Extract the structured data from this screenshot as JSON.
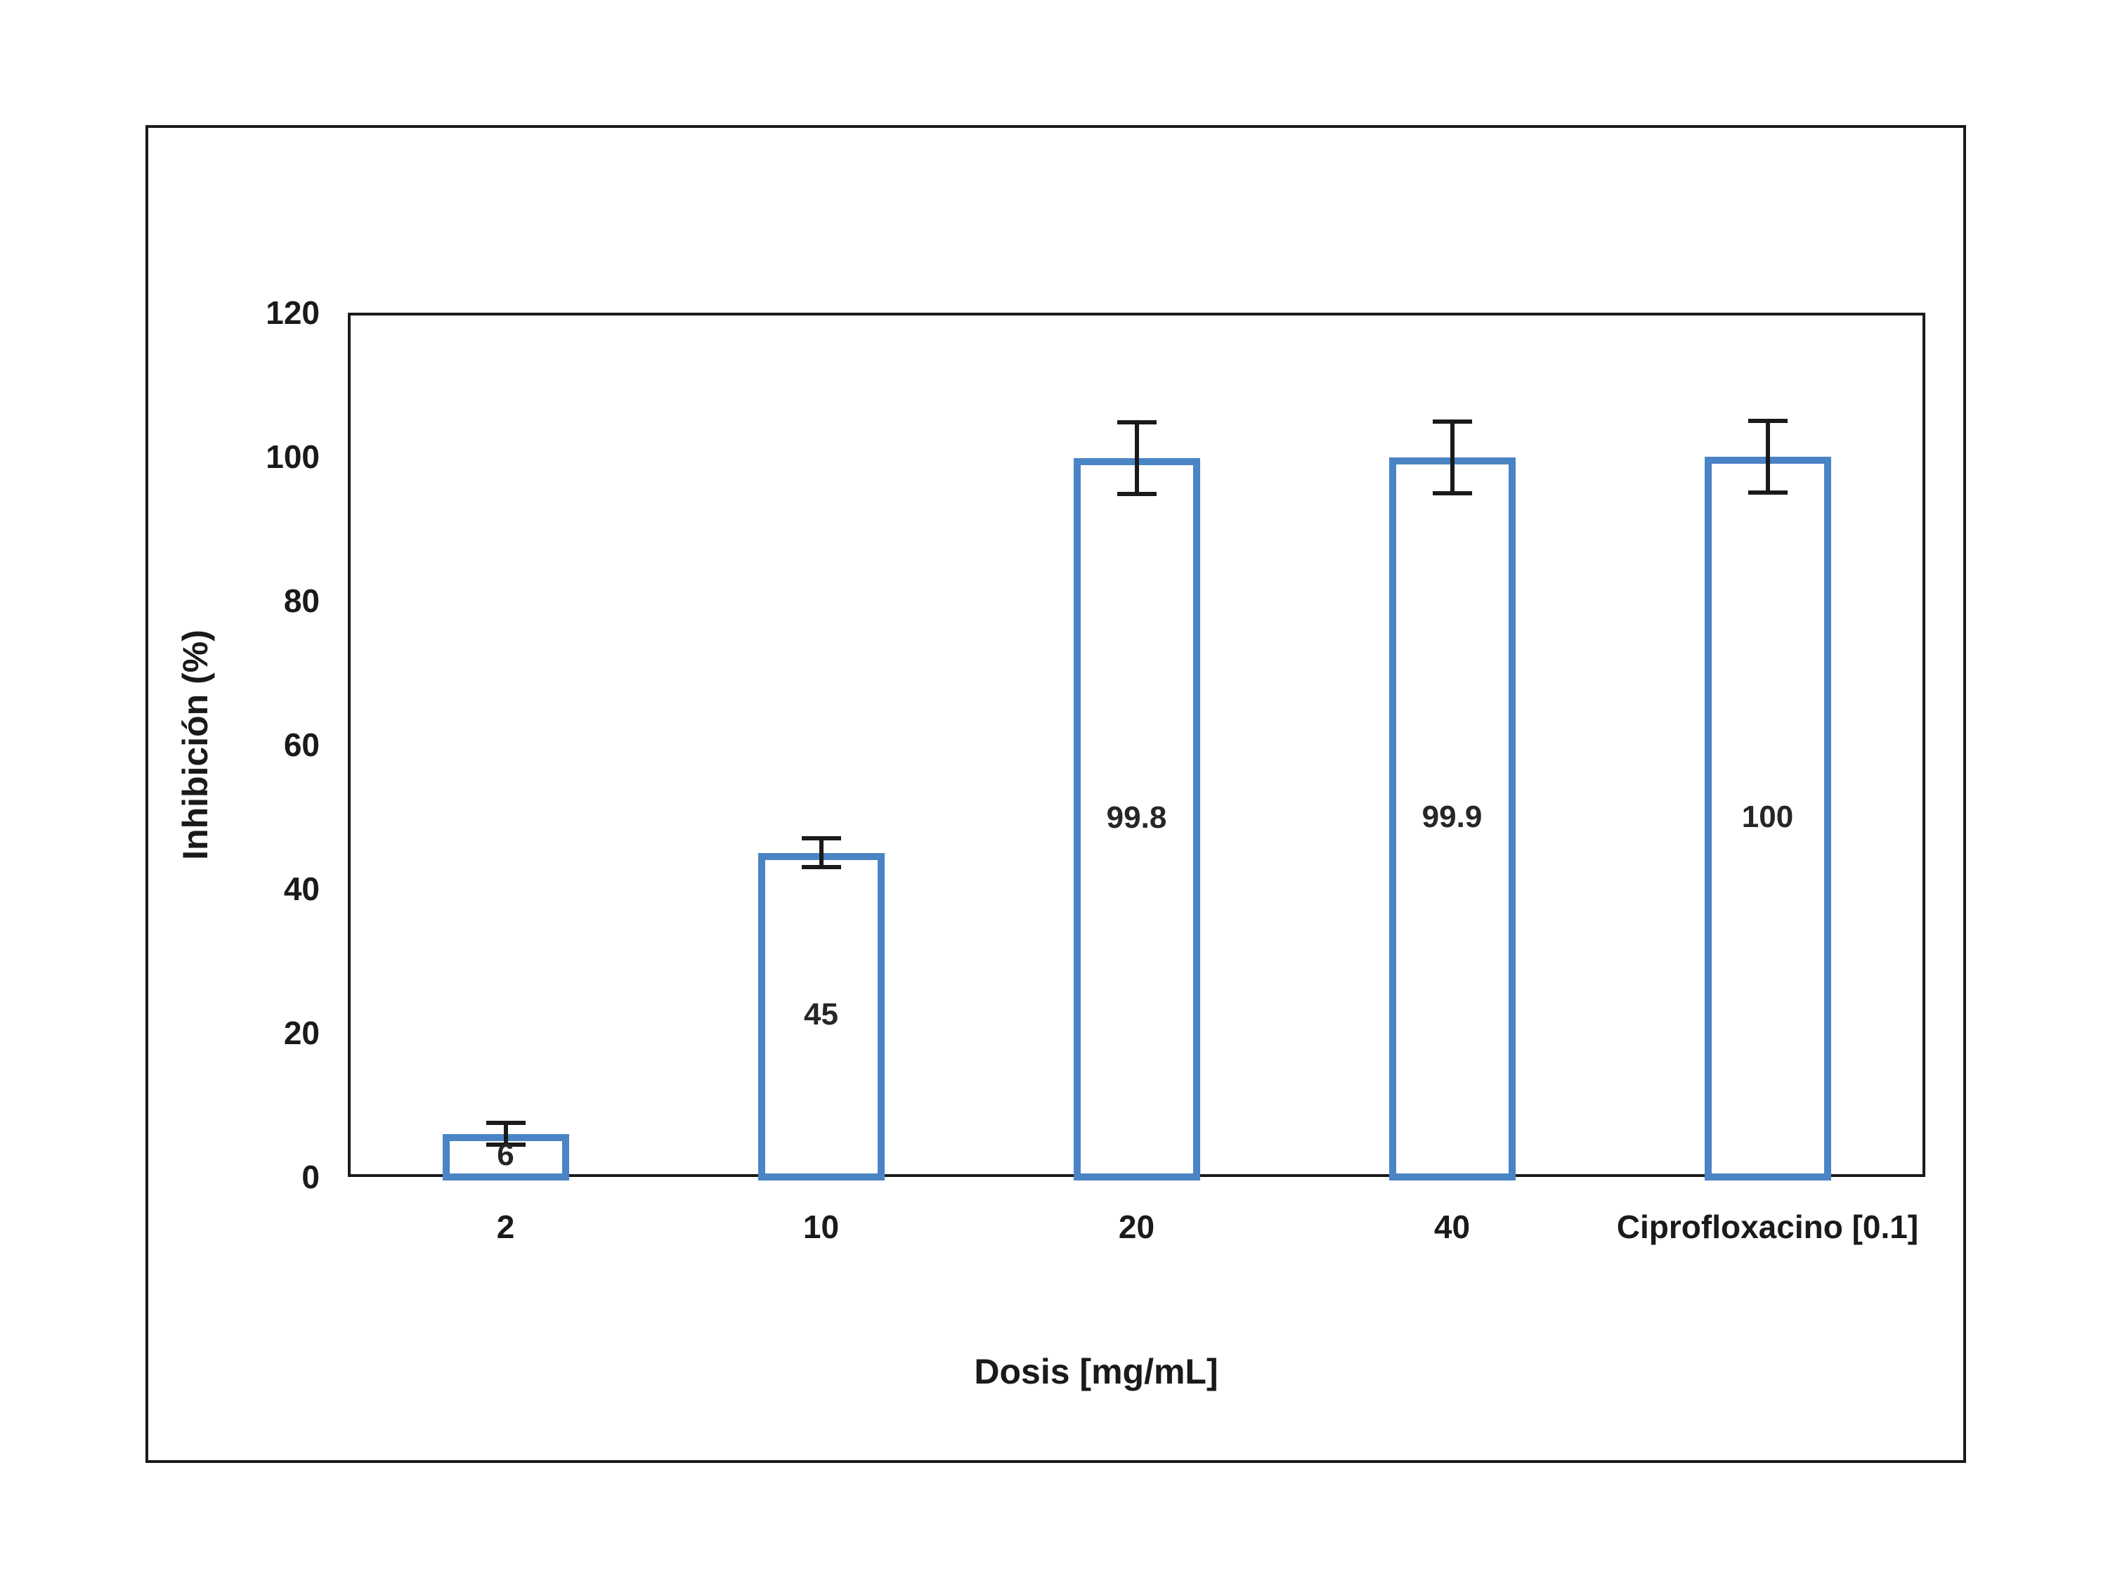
{
  "figure": {
    "background_color": "#ffffff",
    "border_color": "#1a1a1a"
  },
  "chart_data": {
    "type": "bar",
    "title": "",
    "xlabel": "Dosis [mg/mL]",
    "ylabel": "Inhibición (%)",
    "categories": [
      "2",
      "10",
      "20",
      "40",
      "Ciprofloxacino [0.1]"
    ],
    "values": [
      6,
      45,
      99.8,
      99.9,
      100
    ],
    "data_labels": [
      "6",
      "45",
      "99.8",
      "99.9",
      "100"
    ],
    "error_bars": [
      1.5,
      2,
      5,
      5,
      5
    ],
    "y_ticks": [
      0,
      20,
      40,
      60,
      80,
      100,
      120
    ],
    "ylim": [
      0,
      120
    ],
    "grid": false,
    "legend_position": "none",
    "bar_fill_color": "#ffffff",
    "bar_border_color": "#4a84c4",
    "error_bar_color": "#1a1a1a",
    "text_color": "#1a1a1a"
  }
}
